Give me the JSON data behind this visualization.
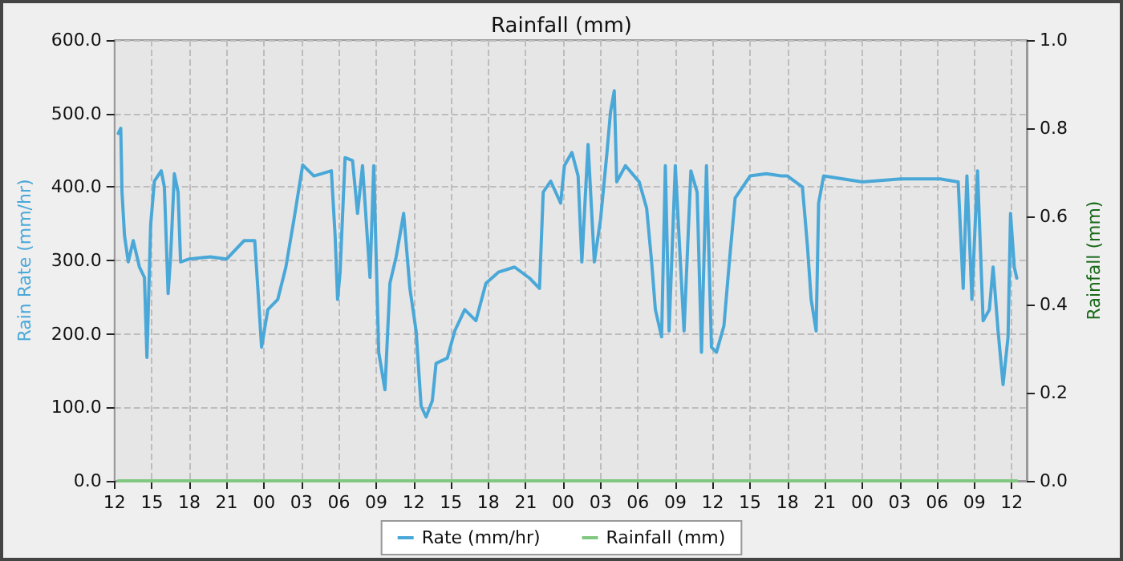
{
  "chart_data": {
    "type": "line",
    "title": "Rainfall (mm)",
    "ylabel": "Rain Rate (mm/hr)",
    "y2label": "Rainfall (mm)",
    "xlim": [
      12,
      85.2
    ],
    "xticks": [
      12,
      15,
      18,
      21,
      {
        "value": 24,
        "label": "00"
      },
      {
        "value": 27,
        "label": "03"
      },
      {
        "value": 30,
        "label": "06"
      },
      {
        "value": 33,
        "label": "09"
      },
      {
        "value": 36,
        "label": "12"
      },
      {
        "value": 39,
        "label": "15"
      },
      {
        "value": 42,
        "label": "18"
      },
      {
        "value": 45,
        "label": "21"
      },
      {
        "value": 48,
        "label": "00"
      },
      {
        "value": 51,
        "label": "03"
      },
      {
        "value": 54,
        "label": "06"
      },
      {
        "value": 57,
        "label": "09"
      },
      {
        "value": 60,
        "label": "12"
      },
      {
        "value": 63,
        "label": "15"
      },
      {
        "value": 66,
        "label": "18"
      },
      {
        "value": 69,
        "label": "21"
      },
      {
        "value": 72,
        "label": "00"
      },
      {
        "value": 75,
        "label": "03"
      },
      {
        "value": 78,
        "label": "06"
      },
      {
        "value": 81,
        "label": "09"
      },
      {
        "value": 84,
        "label": "12"
      }
    ],
    "ylim": [
      0,
      600
    ],
    "yticks": [
      {
        "value": 0,
        "label": "0.0"
      },
      {
        "value": 100,
        "label": "100.0"
      },
      {
        "value": 200,
        "label": "200.0"
      },
      {
        "value": 300,
        "label": "300.0"
      },
      {
        "value": 400,
        "label": "400.0"
      },
      {
        "value": 500,
        "label": "500.0"
      },
      {
        "value": 600,
        "label": "600.0"
      }
    ],
    "y2lim": [
      0,
      1
    ],
    "y2ticks": [
      {
        "value": 0,
        "label": "0.0"
      },
      {
        "value": 0.2,
        "label": "0.2"
      },
      {
        "value": 0.4,
        "label": "0.4"
      },
      {
        "value": 0.6,
        "label": "0.6"
      },
      {
        "value": 0.8,
        "label": "0.8"
      },
      {
        "value": 1,
        "label": "1.0"
      }
    ],
    "grid": true,
    "legend": "bottom",
    "marker": "none",
    "line_style": "solid",
    "series": [
      {
        "name": "Rate (mm/hr)",
        "color": "#4aa8d8",
        "x": [
          12.3,
          12.5,
          12.6,
          12.8,
          13.1,
          13.5,
          14.0,
          14.4,
          14.6,
          14.9,
          15.2,
          15.75,
          16.0,
          16.3,
          16.5,
          16.8,
          17.1,
          17.3,
          18.0,
          19.7,
          21.0,
          22.4,
          23.25,
          23.5,
          23.8,
          24.3,
          25.1,
          25.75,
          26.4,
          27.1,
          28.0,
          29.4,
          29.7,
          29.9,
          30.1,
          30.5,
          31.1,
          31.5,
          31.9,
          32.5,
          32.8,
          33.2,
          33.7,
          34.1,
          34.6,
          35.2,
          35.7,
          36.2,
          36.6,
          37.0,
          37.5,
          37.8,
          38.7,
          39.3,
          40.1,
          41.0,
          41.8,
          42.8,
          44.1,
          45.3,
          46.1,
          46.4,
          47.0,
          47.8,
          48.1,
          48.7,
          49.2,
          49.5,
          50.0,
          50.5,
          51.0,
          51.5,
          51.8,
          52.1,
          52.3,
          53.0,
          54.1,
          54.7,
          55.1,
          55.4,
          55.9,
          56.2,
          56.5,
          57.0,
          57.7,
          58.25,
          58.75,
          59.1,
          59.5,
          59.9,
          60.3,
          60.9,
          61.3,
          61.8,
          63.0,
          64.3,
          65.5,
          66.0,
          67.2,
          67.6,
          67.9,
          68.3,
          68.5,
          68.9,
          72.0,
          75.1,
          78.25,
          79.7,
          80.1,
          80.4,
          80.8,
          81.25,
          81.7,
          82.2,
          82.5,
          82.9,
          83.3,
          83.7,
          83.9,
          84.2,
          84.4
        ],
        "values": [
          473,
          480,
          393,
          334,
          298,
          327,
          291,
          277,
          168,
          349,
          408,
          422,
          400,
          255,
          305,
          418,
          393,
          298,
          302,
          305,
          302,
          327,
          327,
          262,
          182,
          233,
          247,
          291,
          356,
          430,
          415,
          422,
          334,
          247,
          284,
          440,
          436,
          364,
          429,
          277,
          429,
          175,
          124,
          269,
          305,
          364,
          262,
          204,
          102,
          87,
          109,
          160,
          167,
          204,
          233,
          218,
          269,
          284,
          291,
          276,
          262,
          393,
          408,
          378,
          429,
          447,
          415,
          298,
          458,
          298,
          356,
          444,
          502,
          531,
          407,
          429,
          407,
          371,
          298,
          233,
          196,
          429,
          204,
          429,
          204,
          422,
          393,
          175,
          429,
          182,
          175,
          211,
          291,
          385,
          415,
          418,
          415,
          415,
          400,
          320,
          247,
          204,
          378,
          415,
          407,
          411,
          411,
          407,
          262,
          415,
          247,
          422,
          218,
          233,
          291,
          204,
          131,
          196,
          364,
          291,
          276
        ]
      },
      {
        "name": "Rainfall (mm)",
        "type": "line",
        "axis": "y2",
        "color": "#80c880",
        "x": [
          12.3,
          84.4
        ],
        "values": [
          0,
          0
        ]
      }
    ]
  }
}
